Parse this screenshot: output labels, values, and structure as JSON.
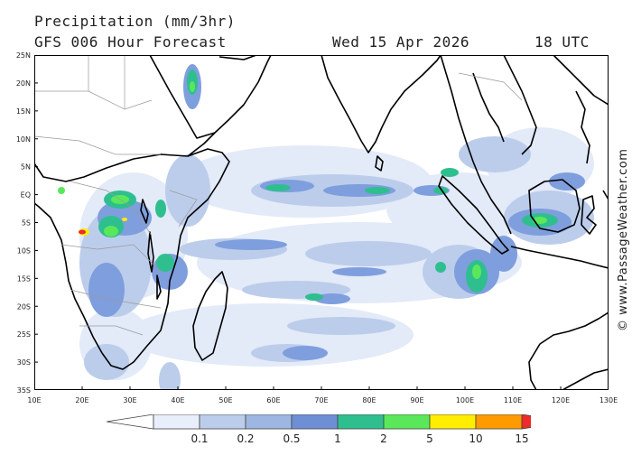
{
  "header": {
    "title": "Precipitation (mm/3hr)",
    "model": "GFS 006 Hour Forecast",
    "date": "Wed 15 Apr 2026",
    "time": "18 UTC"
  },
  "credit": "© www.PassageWeather.com",
  "map": {
    "lon_range": [
      10,
      130
    ],
    "lat_range": [
      -35,
      25
    ],
    "lon_labels": [
      "10E",
      "20E",
      "30E",
      "40E",
      "50E",
      "60E",
      "70E",
      "80E",
      "90E",
      "100E",
      "110E",
      "120E",
      "130E"
    ],
    "lat_labels": [
      "25N",
      "20N",
      "15N",
      "10N",
      "5N",
      "EQ",
      "5S",
      "10S",
      "15S",
      "20S",
      "25S",
      "30S",
      "35S"
    ]
  },
  "colors": {
    "c01": "#e8eefa",
    "c02": "#bccdeb",
    "c05": "#9db7e2",
    "c1": "#6e8fd6",
    "c2": "#2fbf8f",
    "c5": "#5ae85a",
    "c10": "#ffee00",
    "c15": "#ff9a00",
    "cmax": "#ee2a2a"
  },
  "scale": {
    "labels": [
      "0.1",
      "0.2",
      "0.5",
      "1",
      "2",
      "5",
      "10",
      "15"
    ]
  }
}
